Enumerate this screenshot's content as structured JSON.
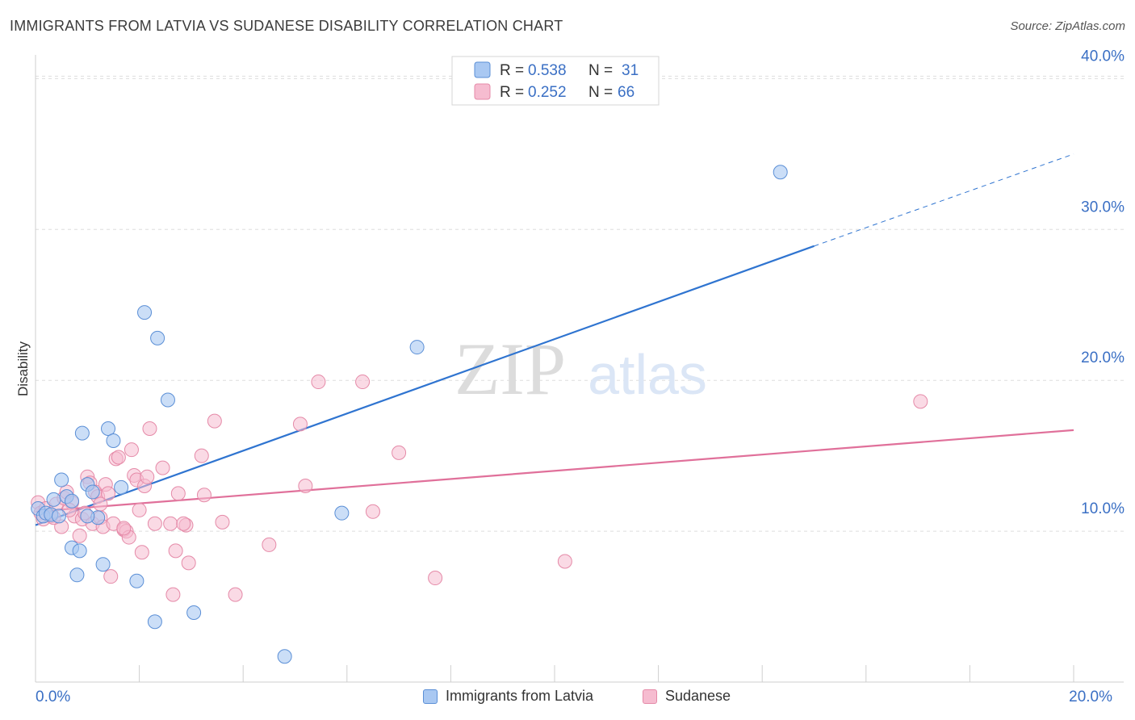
{
  "title": "IMMIGRANTS FROM LATVIA VS SUDANESE DISABILITY CORRELATION CHART",
  "source": "Source: ZipAtlas.com",
  "watermark": {
    "zip": "ZIP",
    "atlas": "atlas"
  },
  "legend_top": [
    {
      "r_label": "R = ",
      "r_value": "0.538",
      "n_label": "N = ",
      "n_value": "31"
    },
    {
      "r_label": "R = ",
      "r_value": "0.252",
      "n_label": "N = ",
      "n_value": "66"
    }
  ],
  "colors": {
    "latvia_fill": "#a9c8f2",
    "latvia_stroke": "#5b8fd6",
    "latvia_line": "#2f74d0",
    "sudanese_fill": "#f6bcd0",
    "sudanese_stroke": "#e58aa8",
    "sudanese_line": "#e0709a",
    "value_text": "#3a6fc4",
    "grid": "#dddddd"
  },
  "chart_data": {
    "type": "scatter",
    "ylabel": "Disability",
    "xlim": [
      0,
      20
    ],
    "ylim": [
      0,
      42
    ],
    "x_ticks": [
      0,
      2,
      4,
      6,
      8,
      10,
      12,
      14,
      16,
      18,
      20
    ],
    "x_tick_labels": [
      {
        "value": 0,
        "label": "0.0%"
      },
      {
        "value": 20,
        "label": "20.0%"
      }
    ],
    "y_ticks": [
      {
        "value": 10,
        "label": "10.0%"
      },
      {
        "value": 20,
        "label": "20.0%"
      },
      {
        "value": 30,
        "label": "30.0%"
      },
      {
        "value": 40,
        "label": "40.0%"
      }
    ],
    "grid": "horizontal-dashed",
    "legend": "top-center",
    "series": [
      {
        "name": "Immigrants from Latvia",
        "r": 0.538,
        "n": 31,
        "trend": {
          "x0": 0,
          "y0": 10.4,
          "x1": 15,
          "y1": 28.9,
          "dashed_to_x": 20,
          "dashed_to_y": 35.0
        },
        "points": [
          [
            0.05,
            11.5
          ],
          [
            0.15,
            11.0
          ],
          [
            0.2,
            11.2
          ],
          [
            0.3,
            11.1
          ],
          [
            0.35,
            12.1
          ],
          [
            0.45,
            11.0
          ],
          [
            0.5,
            13.4
          ],
          [
            0.6,
            12.3
          ],
          [
            0.7,
            12.0
          ],
          [
            0.7,
            8.9
          ],
          [
            0.8,
            7.1
          ],
          [
            0.85,
            8.7
          ],
          [
            0.9,
            16.5
          ],
          [
            1.0,
            13.1
          ],
          [
            1.1,
            12.6
          ],
          [
            1.2,
            10.9
          ],
          [
            1.3,
            7.8
          ],
          [
            1.4,
            16.8
          ],
          [
            1.5,
            16.0
          ],
          [
            1.65,
            12.9
          ],
          [
            1.95,
            6.7
          ],
          [
            2.1,
            24.5
          ],
          [
            2.3,
            4.0
          ],
          [
            2.35,
            22.8
          ],
          [
            2.55,
            18.7
          ],
          [
            3.05,
            4.6
          ],
          [
            4.8,
            1.7
          ],
          [
            5.9,
            11.2
          ],
          [
            7.35,
            22.2
          ],
          [
            14.35,
            33.8
          ],
          [
            1.0,
            11.0
          ]
        ]
      },
      {
        "name": "Sudanese",
        "r": 0.252,
        "n": 66,
        "trend": {
          "x0": 0,
          "y0": 11.3,
          "x1": 20,
          "y1": 16.7
        },
        "points": [
          [
            0.05,
            11.9
          ],
          [
            0.1,
            11.2
          ],
          [
            0.2,
            11.5
          ],
          [
            0.3,
            11.0
          ],
          [
            0.4,
            11.8
          ],
          [
            0.5,
            10.3
          ],
          [
            0.55,
            12.2
          ],
          [
            0.6,
            12.6
          ],
          [
            0.7,
            11.9
          ],
          [
            0.75,
            11.0
          ],
          [
            0.85,
            9.7
          ],
          [
            0.9,
            10.8
          ],
          [
            1.0,
            13.6
          ],
          [
            1.05,
            13.2
          ],
          [
            1.1,
            10.5
          ],
          [
            1.15,
            12.6
          ],
          [
            1.2,
            12.3
          ],
          [
            1.25,
            10.9
          ],
          [
            1.3,
            10.3
          ],
          [
            1.35,
            13.1
          ],
          [
            1.4,
            12.5
          ],
          [
            1.45,
            7.0
          ],
          [
            1.5,
            10.5
          ],
          [
            1.55,
            14.8
          ],
          [
            1.6,
            14.9
          ],
          [
            1.7,
            10.1
          ],
          [
            1.75,
            10.0
          ],
          [
            1.8,
            9.6
          ],
          [
            1.85,
            15.4
          ],
          [
            1.9,
            13.7
          ],
          [
            1.95,
            13.4
          ],
          [
            2.0,
            11.4
          ],
          [
            2.05,
            8.6
          ],
          [
            2.1,
            13.0
          ],
          [
            2.15,
            13.6
          ],
          [
            2.2,
            16.8
          ],
          [
            2.3,
            10.5
          ],
          [
            2.45,
            14.2
          ],
          [
            2.6,
            10.5
          ],
          [
            2.65,
            5.8
          ],
          [
            2.7,
            8.7
          ],
          [
            2.75,
            12.5
          ],
          [
            2.9,
            10.4
          ],
          [
            2.95,
            7.9
          ],
          [
            3.2,
            15.0
          ],
          [
            3.25,
            12.4
          ],
          [
            3.45,
            17.3
          ],
          [
            3.6,
            10.6
          ],
          [
            3.85,
            5.8
          ],
          [
            4.5,
            9.1
          ],
          [
            5.1,
            17.1
          ],
          [
            5.2,
            13.0
          ],
          [
            5.45,
            19.9
          ],
          [
            6.3,
            19.9
          ],
          [
            6.5,
            11.3
          ],
          [
            7.0,
            15.2
          ],
          [
            7.7,
            6.9
          ],
          [
            10.2,
            8.0
          ],
          [
            17.05,
            18.6
          ],
          [
            0.15,
            10.8
          ],
          [
            0.65,
            11.4
          ],
          [
            1.25,
            11.8
          ],
          [
            0.35,
            10.9
          ],
          [
            1.7,
            10.2
          ],
          [
            2.85,
            10.5
          ],
          [
            0.95,
            11.2
          ]
        ]
      }
    ]
  }
}
